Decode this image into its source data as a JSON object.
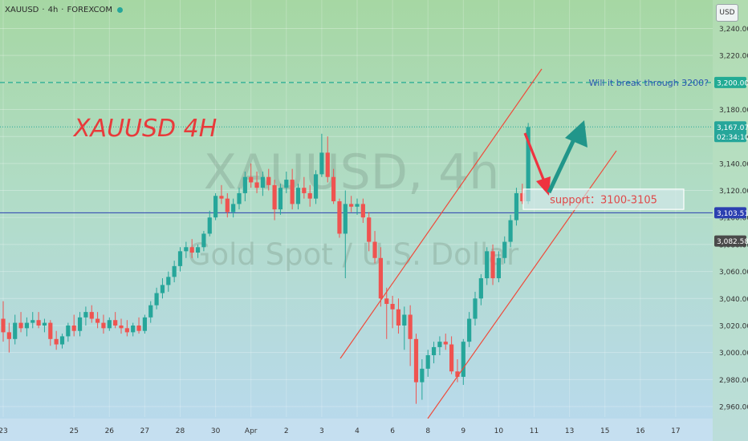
{
  "header": {
    "symbol": "XAUUSD",
    "interval": "4h",
    "exchange": "FOREXCOM",
    "separator": "·",
    "currency": "USD"
  },
  "watermark": {
    "line1": "XAUUSD, 4h",
    "line2": "Gold Spot / U.S. Dollar"
  },
  "annotations": {
    "title": "XAUUSD 4H",
    "question": "Will it break through 3200?",
    "support": "support：3100-3105"
  },
  "price_tags": [
    {
      "price": 3200.0,
      "label": "3,200.00",
      "color": "#22ab94"
    },
    {
      "price": 3167.07,
      "label": "3,167.07",
      "color": "#26a69a",
      "sub": "02:34:10"
    },
    {
      "price": 3103.51,
      "label": "3,103.51",
      "color": "#2b3fb0"
    },
    {
      "price": 3082.58,
      "label": "3,082.58",
      "color": "#4a4a4a"
    }
  ],
  "colors": {
    "up": "#26a69a",
    "down": "#ef5350",
    "channel": "#ef4b3b",
    "hline_blue": "#2b3fb0",
    "hline_green": "#22ab94",
    "arrow_red": "#ef3340",
    "arrow_green": "#21968a"
  },
  "chart_data": {
    "type": "candlestick",
    "symbol": "XAUUSD",
    "timeframe": "4h",
    "yaxis": {
      "min": 2950,
      "max": 3250,
      "ticks": [
        2960,
        2980,
        3000,
        3020,
        3040,
        3060,
        3080,
        3100,
        3120,
        3140,
        3160,
        3180,
        3200,
        3220,
        3240
      ]
    },
    "xaxis": {
      "tick_labels": [
        {
          "label": "23",
          "x": 0
        },
        {
          "label": "25",
          "x": 12
        },
        {
          "label": "26",
          "x": 18
        },
        {
          "label": "27",
          "x": 24
        },
        {
          "label": "28",
          "x": 30
        },
        {
          "label": "30",
          "x": 36
        },
        {
          "label": "Apr",
          "x": 42
        },
        {
          "label": "2",
          "x": 48
        },
        {
          "label": "3",
          "x": 54
        },
        {
          "label": "4",
          "x": 60
        },
        {
          "label": "6",
          "x": 66
        },
        {
          "label": "8",
          "x": 72
        },
        {
          "label": "9",
          "x": 78
        },
        {
          "label": "10",
          "x": 84
        },
        {
          "label": "11",
          "x": 90
        },
        {
          "label": "13",
          "x": 96
        },
        {
          "label": "15",
          "x": 102
        },
        {
          "label": "16",
          "x": 108
        },
        {
          "label": "17",
          "x": 114
        }
      ]
    },
    "candles": [
      [
        3025,
        3038,
        3008,
        3015
      ],
      [
        3015,
        3022,
        3000,
        3010
      ],
      [
        3010,
        3028,
        3006,
        3022
      ],
      [
        3022,
        3030,
        3015,
        3018
      ],
      [
        3018,
        3026,
        3012,
        3022
      ],
      [
        3022,
        3030,
        3018,
        3024
      ],
      [
        3024,
        3030,
        3018,
        3020
      ],
      [
        3020,
        3025,
        3015,
        3022
      ],
      [
        3022,
        3024,
        3005,
        3010
      ],
      [
        3010,
        3016,
        3002,
        3006
      ],
      [
        3006,
        3014,
        3003,
        3012
      ],
      [
        3012,
        3022,
        3008,
        3020
      ],
      [
        3020,
        3028,
        3012,
        3016
      ],
      [
        3016,
        3030,
        3012,
        3026
      ],
      [
        3026,
        3034,
        3020,
        3030
      ],
      [
        3030,
        3035,
        3022,
        3025
      ],
      [
        3025,
        3030,
        3018,
        3022
      ],
      [
        3022,
        3028,
        3014,
        3018
      ],
      [
        3018,
        3026,
        3016,
        3024
      ],
      [
        3024,
        3030,
        3018,
        3020
      ],
      [
        3020,
        3025,
        3014,
        3018
      ],
      [
        3018,
        3024,
        3012,
        3015
      ],
      [
        3015,
        3022,
        3012,
        3020
      ],
      [
        3020,
        3026,
        3014,
        3016
      ],
      [
        3016,
        3028,
        3014,
        3026
      ],
      [
        3026,
        3038,
        3022,
        3035
      ],
      [
        3035,
        3048,
        3032,
        3044
      ],
      [
        3044,
        3055,
        3040,
        3050
      ],
      [
        3050,
        3060,
        3045,
        3056
      ],
      [
        3056,
        3068,
        3052,
        3064
      ],
      [
        3064,
        3078,
        3060,
        3075
      ],
      [
        3075,
        3082,
        3070,
        3078
      ],
      [
        3078,
        3084,
        3070,
        3074
      ],
      [
        3074,
        3080,
        3070,
        3078
      ],
      [
        3078,
        3090,
        3075,
        3088
      ],
      [
        3088,
        3105,
        3086,
        3100
      ],
      [
        3100,
        3118,
        3098,
        3116
      ],
      [
        3116,
        3124,
        3110,
        3114
      ],
      [
        3114,
        3118,
        3100,
        3104
      ],
      [
        3104,
        3114,
        3100,
        3110
      ],
      [
        3110,
        3122,
        3106,
        3118
      ],
      [
        3118,
        3134,
        3112,
        3130
      ],
      [
        3130,
        3140,
        3122,
        3126
      ],
      [
        3126,
        3134,
        3118,
        3122
      ],
      [
        3122,
        3134,
        3116,
        3130
      ],
      [
        3130,
        3136,
        3120,
        3124
      ],
      [
        3124,
        3128,
        3098,
        3106
      ],
      [
        3106,
        3125,
        3102,
        3122
      ],
      [
        3122,
        3134,
        3118,
        3128
      ],
      [
        3128,
        3136,
        3106,
        3110
      ],
      [
        3110,
        3125,
        3106,
        3122
      ],
      [
        3122,
        3130,
        3114,
        3118
      ],
      [
        3118,
        3124,
        3108,
        3114
      ],
      [
        3114,
        3135,
        3110,
        3132
      ],
      [
        3132,
        3162,
        3130,
        3148
      ],
      [
        3148,
        3160,
        3126,
        3130
      ],
      [
        3130,
        3136,
        3110,
        3112
      ],
      [
        3112,
        3114,
        3085,
        3088
      ],
      [
        3088,
        3120,
        3055,
        3110
      ],
      [
        3110,
        3116,
        3104,
        3108
      ],
      [
        3108,
        3114,
        3102,
        3110
      ],
      [
        3110,
        3114,
        3096,
        3100
      ],
      [
        3100,
        3104,
        3075,
        3082
      ],
      [
        3082,
        3090,
        3066,
        3070
      ],
      [
        3070,
        3078,
        3034,
        3040
      ],
      [
        3040,
        3048,
        3010,
        3036
      ],
      [
        3036,
        3042,
        3018,
        3032
      ],
      [
        3032,
        3040,
        3014,
        3020
      ],
      [
        3020,
        3034,
        3002,
        3028
      ],
      [
        3028,
        3035,
        2990,
        3010
      ],
      [
        3010,
        3014,
        2962,
        2978
      ],
      [
        2978,
        2995,
        2965,
        2988
      ],
      [
        2988,
        3002,
        2982,
        2998
      ],
      [
        2998,
        3008,
        2992,
        3004
      ],
      [
        3004,
        3012,
        2998,
        3008
      ],
      [
        3008,
        3014,
        3002,
        3006
      ],
      [
        3006,
        3012,
        2984,
        2986
      ],
      [
        2986,
        2995,
        2978,
        2982
      ],
      [
        2982,
        3010,
        2976,
        3008
      ],
      [
        3008,
        3030,
        3004,
        3025
      ],
      [
        3025,
        3045,
        3020,
        3040
      ],
      [
        3040,
        3058,
        3035,
        3055
      ],
      [
        3055,
        3078,
        3050,
        3075
      ],
      [
        3075,
        3080,
        3050,
        3055
      ],
      [
        3055,
        3075,
        3052,
        3070
      ],
      [
        3070,
        3086,
        3066,
        3082
      ],
      [
        3082,
        3102,
        3078,
        3098
      ],
      [
        3098,
        3122,
        3094,
        3118
      ],
      [
        3118,
        3125,
        3110,
        3112
      ],
      [
        3112,
        3170,
        3110,
        3167
      ]
    ]
  }
}
